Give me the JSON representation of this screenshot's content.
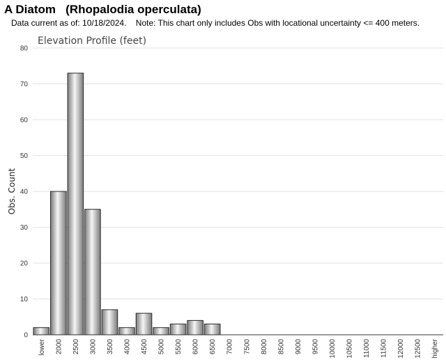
{
  "header": {
    "title": "A Diatom   (Rhopalodia operculata)",
    "subtitle": "Data current as of: 10/18/2024.    Note: This chart only includes Obs with locational uncertainty <= 400 meters."
  },
  "colors": {
    "bar_fill_light": "#f5f5f5",
    "bar_fill_dark": "#7a7a7a",
    "bar_stroke": "#2a2a2a",
    "grid": "#e2e2e2"
  },
  "chart_data": {
    "type": "bar",
    "title": "Elevation Profile (feet)",
    "xlabel": "",
    "ylabel": "Obs. Count",
    "ylim": [
      0,
      80
    ],
    "yticks": [
      0,
      10,
      20,
      30,
      40,
      50,
      60,
      70,
      80
    ],
    "grid": true,
    "categories": [
      "lower",
      "2000",
      "2500",
      "3000",
      "3500",
      "4000",
      "4500",
      "5000",
      "5500",
      "6000",
      "6500",
      "7000",
      "7500",
      "8000",
      "8500",
      "9000",
      "9500",
      "10000",
      "10500",
      "11000",
      "11500",
      "12000",
      "12500",
      "higher"
    ],
    "values": [
      2,
      40,
      73,
      35,
      7,
      2,
      6,
      2,
      3,
      4,
      3,
      0,
      0,
      0,
      0,
      0,
      0,
      0,
      0,
      0,
      0,
      0,
      0,
      0
    ]
  }
}
